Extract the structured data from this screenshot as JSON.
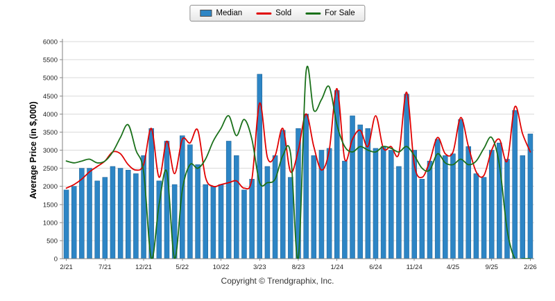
{
  "footer": {
    "copyright": "Copyright © Trendgraphix, Inc."
  },
  "chart_data": {
    "type": "combo",
    "title": "",
    "ylabel": "Average Price (in $,000)",
    "ylim": [
      0,
      6000
    ],
    "ytick_step": 500,
    "x_label_every": 5,
    "grid": true,
    "legend_position": "top-center",
    "categories": [
      "2/21",
      "3/21",
      "4/21",
      "5/21",
      "6/21",
      "7/21",
      "8/21",
      "9/21",
      "10/21",
      "11/21",
      "12/21",
      "1/22",
      "2/22",
      "3/22",
      "4/22",
      "5/22",
      "6/22",
      "7/22",
      "8/22",
      "9/22",
      "10/22",
      "11/22",
      "12/22",
      "1/23",
      "2/23",
      "3/23",
      "4/23",
      "5/23",
      "6/23",
      "7/23",
      "8/23",
      "9/23",
      "10/23",
      "11/23",
      "12/23",
      "1/24",
      "2/24",
      "3/24",
      "4/24",
      "5/24",
      "6/24",
      "7/24",
      "8/24",
      "9/24",
      "10/24",
      "11/24",
      "12/24",
      "1/25",
      "2/25",
      "3/25",
      "4/25",
      "5/25",
      "6/25",
      "7/25",
      "8/25",
      "9/25",
      "10/25",
      "11/25",
      "12/25",
      "1/26",
      "2/26"
    ],
    "series": [
      {
        "name": "Median",
        "type": "bar",
        "color": "#2d85c5",
        "values": [
          1900,
          2000,
          2500,
          2500,
          2150,
          2250,
          2550,
          2500,
          2450,
          2350,
          2850,
          3600,
          2150,
          3250,
          2050,
          3400,
          3150,
          2600,
          2050,
          2000,
          2050,
          3250,
          2850,
          1900,
          2200,
          5100,
          2550,
          2850,
          3550,
          2250,
          3600,
          4000,
          2850,
          3000,
          3050,
          4650,
          2700,
          3950,
          3700,
          3600,
          3050,
          3100,
          3000,
          2550,
          4550,
          3000,
          2200,
          2700,
          3300,
          2850,
          2900,
          3850,
          3100,
          2350,
          2250,
          3000,
          3200,
          2750,
          4100,
          2850,
          3450
        ]
      },
      {
        "name": "Sold",
        "type": "line",
        "color": "#e00000",
        "values": [
          1950,
          2050,
          2200,
          2400,
          2550,
          2700,
          2950,
          2900,
          2600,
          2450,
          2600,
          3600,
          2250,
          3250,
          2350,
          3300,
          3200,
          3550,
          2250,
          2000,
          2050,
          2100,
          2150,
          1950,
          2200,
          4300,
          2800,
          2850,
          3600,
          2400,
          3000,
          4000,
          3100,
          2450,
          3000,
          4700,
          2750,
          3300,
          3550,
          3100,
          3950,
          3050,
          3100,
          2900,
          4600,
          2600,
          2250,
          2700,
          3350,
          2900,
          2950,
          3900,
          3100,
          2400,
          2300,
          3000,
          3300,
          2700,
          4200,
          3450,
          2950
        ]
      },
      {
        "name": "For Sale",
        "type": "line",
        "color": "#1a701a",
        "values": [
          2700,
          2650,
          2700,
          2750,
          2650,
          2700,
          2950,
          3350,
          3700,
          3000,
          2400,
          0,
          1500,
          2400,
          0,
          1900,
          2600,
          2500,
          2750,
          3250,
          3600,
          3950,
          3400,
          3850,
          3300,
          2100,
          2100,
          2200,
          2850,
          2900,
          0,
          5150,
          4100,
          4400,
          4750,
          3700,
          3100,
          2950,
          3100,
          3000,
          2950,
          3100,
          3050,
          2950,
          3100,
          2850,
          2500,
          2450,
          2900,
          2650,
          2600,
          2750,
          2600,
          2700,
          3050,
          3350,
          2600,
          800,
          0,
          0,
          0
        ]
      }
    ]
  }
}
